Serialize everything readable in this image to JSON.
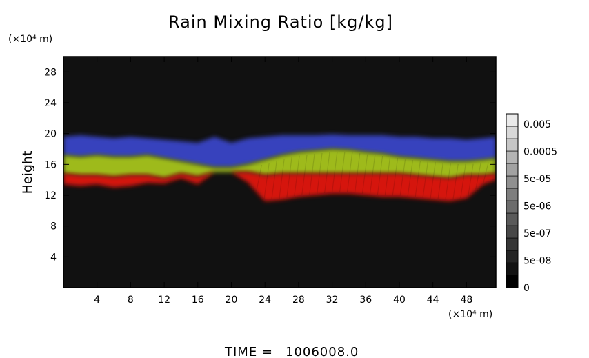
{
  "chart_data": {
    "type": "heatmap",
    "title": "Rain Mixing Ratio [kg/kg]",
    "ylabel": "Height",
    "y_unit": "(×10⁴ m)",
    "x_unit": "(×10⁴ m)",
    "xlim": [
      0,
      51.5
    ],
    "ylim": [
      0,
      30
    ],
    "x_ticks": [
      4,
      8,
      12,
      16,
      20,
      24,
      28,
      32,
      36,
      40,
      44,
      48
    ],
    "y_ticks": [
      4,
      8,
      12,
      16,
      20,
      24,
      28
    ],
    "colorbar": {
      "labels": [
        "0.005",
        "0.0005",
        "5e-05",
        "5e-06",
        "5e-07",
        "5e-08",
        "0"
      ],
      "levels": 14,
      "colors": [
        "#000000",
        "#121212",
        "#242424",
        "#363636",
        "#484848",
        "#5a5a5a",
        "#6c6c6c",
        "#7e7e7e",
        "#909090",
        "#a2a2a2",
        "#b4b4b4",
        "#c6c6c6",
        "#d8d8d8",
        "#eaeaea"
      ]
    },
    "background_color": "#111111",
    "layer_colors": {
      "low": "#e0140c",
      "mid": "#a6c41a",
      "high": "#3a46cc"
    },
    "layer_profile": {
      "x": [
        0,
        2,
        4,
        6,
        8,
        10,
        12,
        14,
        16,
        18,
        20,
        22,
        24,
        26,
        28,
        30,
        32,
        34,
        36,
        38,
        40,
        42,
        44,
        46,
        48,
        50,
        51.5
      ],
      "red_bottom": [
        13.4,
        13.2,
        13.4,
        13.0,
        13.2,
        13.6,
        13.5,
        14.2,
        13.4,
        15.0,
        15.0,
        13.6,
        11.2,
        11.4,
        11.8,
        12.0,
        12.2,
        12.2,
        12.0,
        11.8,
        11.8,
        11.6,
        11.4,
        11.2,
        11.6,
        13.4,
        14.0
      ],
      "red_top": [
        14.8,
        14.6,
        14.6,
        14.4,
        14.6,
        14.6,
        14.2,
        14.8,
        14.4,
        15.0,
        15.0,
        15.0,
        14.6,
        14.8,
        14.8,
        14.8,
        14.8,
        14.8,
        14.8,
        14.8,
        14.8,
        14.6,
        14.4,
        14.2,
        14.6,
        14.6,
        14.8
      ],
      "green_top": [
        17.2,
        17.0,
        17.2,
        17.0,
        17.0,
        17.2,
        16.8,
        16.4,
        16.0,
        15.6,
        15.6,
        16.0,
        16.6,
        17.2,
        17.6,
        17.8,
        18.0,
        17.9,
        17.6,
        17.4,
        17.0,
        16.8,
        16.6,
        16.4,
        16.4,
        16.6,
        16.8
      ],
      "blue_top": [
        19.6,
        19.8,
        19.6,
        19.4,
        19.6,
        19.4,
        19.2,
        19.0,
        18.8,
        19.6,
        18.8,
        19.4,
        19.6,
        19.8,
        19.8,
        19.8,
        19.9,
        19.8,
        19.8,
        19.8,
        19.6,
        19.6,
        19.4,
        19.4,
        19.2,
        19.4,
        19.6
      ]
    },
    "time_label": "TIME =",
    "time_value": "1006008.0"
  }
}
